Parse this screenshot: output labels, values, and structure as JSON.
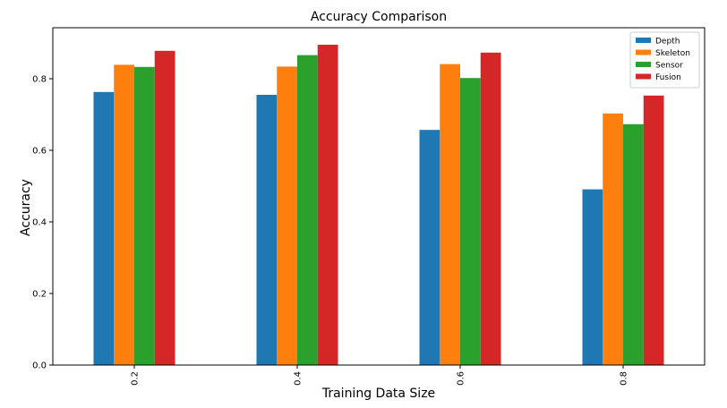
{
  "chart_data": {
    "type": "bar",
    "title": "Accuracy Comparison",
    "xlabel": "Training Data Size",
    "ylabel": "Accuracy",
    "categories": [
      "0.2",
      "0.4",
      "0.6",
      "0.8"
    ],
    "series": [
      {
        "name": "Depth",
        "color": "#1f77b4",
        "values": [
          0.763,
          0.755,
          0.657,
          0.491
        ]
      },
      {
        "name": "Skeleton",
        "color": "#ff7f0e",
        "values": [
          0.839,
          0.834,
          0.841,
          0.703
        ]
      },
      {
        "name": "Sensor",
        "color": "#2ca02c",
        "values": [
          0.833,
          0.866,
          0.802,
          0.673
        ]
      },
      {
        "name": "Fusion",
        "color": "#d62728",
        "values": [
          0.878,
          0.895,
          0.873,
          0.753
        ]
      }
    ],
    "ylim": [
      0,
      0.9425
    ],
    "yticks": [
      "0.0",
      "0.2",
      "0.4",
      "0.6",
      "0.8"
    ],
    "grid": false,
    "legend_position": "top-right"
  }
}
